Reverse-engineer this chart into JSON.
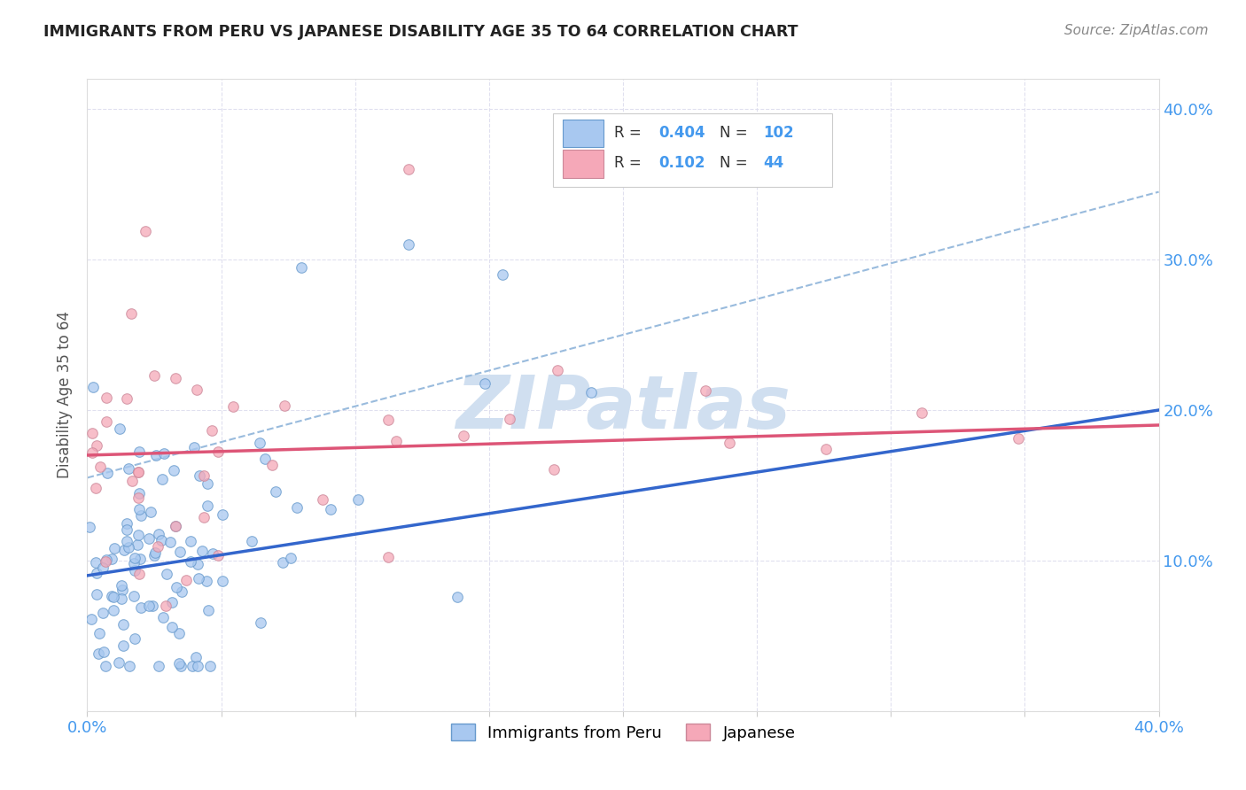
{
  "title": "IMMIGRANTS FROM PERU VS JAPANESE DISABILITY AGE 35 TO 64 CORRELATION CHART",
  "source": "Source: ZipAtlas.com",
  "ylabel": "Disability Age 35 to 64",
  "xlim": [
    0.0,
    0.4
  ],
  "ylim": [
    0.0,
    0.42
  ],
  "peru_color": "#a8c8f0",
  "peru_line_color": "#3366cc",
  "peru_edge_color": "#6699cc",
  "japan_color": "#f5a8b8",
  "japan_line_color": "#dd5577",
  "japan_edge_color": "#cc8899",
  "dashed_color": "#99bbdd",
  "watermark_color": "#d0dff0",
  "background_color": "#ffffff",
  "peru_line_x0": 0.0,
  "peru_line_y0": 0.09,
  "peru_line_x1": 0.4,
  "peru_line_y1": 0.2,
  "japan_line_x0": 0.0,
  "japan_line_y0": 0.17,
  "japan_line_x1": 0.4,
  "japan_line_y1": 0.19,
  "dashed_line_x0": 0.0,
  "dashed_line_y0": 0.155,
  "dashed_line_x1": 0.4,
  "dashed_line_y1": 0.345
}
